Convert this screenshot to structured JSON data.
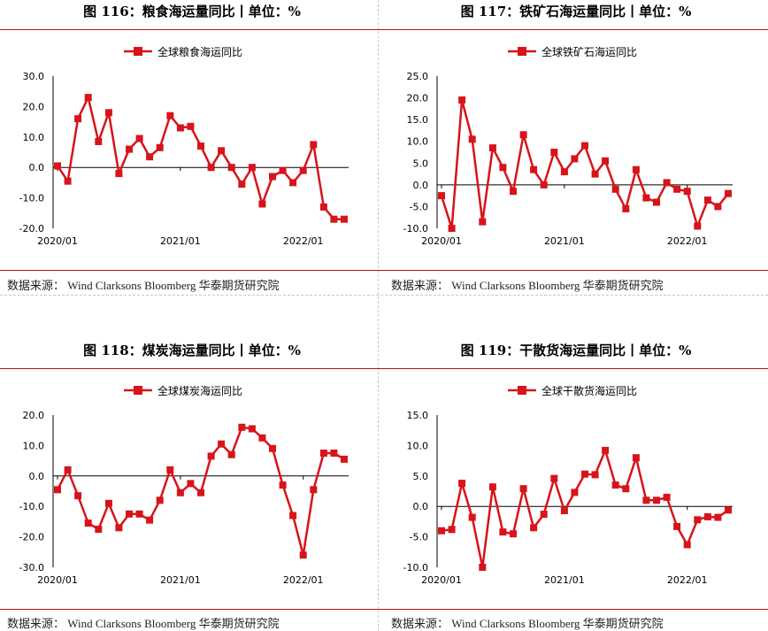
{
  "panels": [
    {
      "title": "图 116：粮食海运量同比丨单位：%",
      "source": "数据来源：  Wind Clarksons Bloomberg 华泰期货研究院",
      "chart_data": {
        "type": "line",
        "legend": "全球粮食海运同比",
        "legend_position": "top-center",
        "color": "#d7141a",
        "ylim": [
          -20,
          30
        ],
        "yticks": [
          30,
          20,
          10,
          0,
          -10,
          -20
        ],
        "ytick_labels": [
          "30.0",
          "20.0",
          "10.0",
          "0.0",
          "-10.0",
          "-20.0"
        ],
        "xtick_labels": [
          "2020/01",
          "2021/01",
          "2022/01"
        ],
        "x": [
          "2020/01",
          "2020/02",
          "2020/03",
          "2020/04",
          "2020/05",
          "2020/06",
          "2020/07",
          "2020/08",
          "2020/09",
          "2020/10",
          "2020/11",
          "2020/12",
          "2021/01",
          "2021/02",
          "2021/03",
          "2021/04",
          "2021/05",
          "2021/06",
          "2021/07",
          "2021/08",
          "2021/09",
          "2021/10",
          "2021/11",
          "2021/12",
          "2022/01",
          "2022/02",
          "2022/03",
          "2022/04",
          "2022/05"
        ],
        "values": [
          0.5,
          -4.5,
          16,
          23,
          8.5,
          18,
          -2,
          6,
          9.5,
          3.5,
          6.5,
          17,
          13,
          13.5,
          7,
          0,
          5.5,
          0,
          -5.5,
          0,
          -12,
          -3,
          -1,
          -5,
          -1,
          7.5,
          -13,
          -17,
          -17
        ]
      }
    },
    {
      "title": "图 117：铁矿石海运量同比丨单位：%",
      "source": "数据来源：  Wind Clarksons Bloomberg 华泰期货研究院",
      "chart_data": {
        "type": "line",
        "legend": "全球铁矿石海运同比",
        "legend_position": "top-center",
        "color": "#d7141a",
        "ylim": [
          -10,
          25
        ],
        "yticks": [
          25,
          20,
          15,
          10,
          5,
          0,
          -5,
          -10
        ],
        "ytick_labels": [
          "25.0",
          "20.0",
          "15.0",
          "10.0",
          "5.0",
          "0.0",
          "-5.0",
          "-10.0"
        ],
        "xtick_labels": [
          "2020/01",
          "2021/01",
          "2022/01"
        ],
        "x": [
          "2020/01",
          "2020/02",
          "2020/03",
          "2020/04",
          "2020/05",
          "2020/06",
          "2020/07",
          "2020/08",
          "2020/09",
          "2020/10",
          "2020/11",
          "2020/12",
          "2021/01",
          "2021/02",
          "2021/03",
          "2021/04",
          "2021/05",
          "2021/06",
          "2021/07",
          "2021/08",
          "2021/09",
          "2021/10",
          "2021/11",
          "2021/12",
          "2022/01",
          "2022/02",
          "2022/03",
          "2022/04",
          "2022/05"
        ],
        "values": [
          -2.5,
          -10,
          19.5,
          10.5,
          -8.5,
          8.5,
          4,
          -1.5,
          11.5,
          3.5,
          0,
          7.5,
          3,
          6,
          9,
          2.5,
          5.5,
          -1,
          -5.5,
          3.5,
          -3,
          -4,
          0.5,
          -1,
          -1.5,
          -9.5,
          -3.5,
          -5,
          -2
        ]
      }
    },
    {
      "title": "图 118：煤炭海运量同比丨单位：%",
      "source": "数据来源：  Wind Clarksons Bloomberg 华泰期货研究院",
      "chart_data": {
        "type": "line",
        "legend": "全球煤炭海运同比",
        "legend_position": "top-center",
        "color": "#d7141a",
        "ylim": [
          -30,
          20
        ],
        "yticks": [
          20,
          10,
          0,
          -10,
          -20,
          -30
        ],
        "ytick_labels": [
          "20.0",
          "10.0",
          "0.0",
          "-10.0",
          "-20.0",
          "-30.0"
        ],
        "xtick_labels": [
          "2020/01",
          "2021/01",
          "2022/01"
        ],
        "x": [
          "2020/01",
          "2020/02",
          "2020/03",
          "2020/04",
          "2020/05",
          "2020/06",
          "2020/07",
          "2020/08",
          "2020/09",
          "2020/10",
          "2020/11",
          "2020/12",
          "2021/01",
          "2021/02",
          "2021/03",
          "2021/04",
          "2021/05",
          "2021/06",
          "2021/07",
          "2021/08",
          "2021/09",
          "2021/10",
          "2021/11",
          "2021/12",
          "2022/01",
          "2022/02",
          "2022/03",
          "2022/04",
          "2022/05"
        ],
        "values": [
          -4.5,
          2,
          -6.5,
          -15.5,
          -17.5,
          -9,
          -17,
          -12.5,
          -12.5,
          -14.5,
          -8,
          2,
          -5.5,
          -2.5,
          -5.5,
          6.5,
          10.5,
          7,
          16,
          15.5,
          12.5,
          9,
          -3,
          -13,
          -26,
          -4.5,
          7.5,
          7.5,
          5.5
        ]
      }
    },
    {
      "title": "图 119：干散货海运量同比丨单位：%",
      "source": "数据来源：  Wind Clarksons Bloomberg 华泰期货研究院",
      "chart_data": {
        "type": "line",
        "legend": "全球干散货海运同比",
        "legend_position": "top-center",
        "color": "#d7141a",
        "ylim": [
          -10,
          15
        ],
        "yticks": [
          15,
          10,
          5,
          0,
          -5,
          -10
        ],
        "ytick_labels": [
          "15.0",
          "10.0",
          "5.0",
          "0.0",
          "-5.0",
          "-10.0"
        ],
        "xtick_labels": [
          "2020/01",
          "2021/01",
          "2022/01"
        ],
        "x": [
          "2020/01",
          "2020/02",
          "2020/03",
          "2020/04",
          "2020/05",
          "2020/06",
          "2020/07",
          "2020/08",
          "2020/09",
          "2020/10",
          "2020/11",
          "2020/12",
          "2021/01",
          "2021/02",
          "2021/03",
          "2021/04",
          "2021/05",
          "2021/06",
          "2021/07",
          "2021/08",
          "2021/09",
          "2021/10",
          "2021/11",
          "2021/12",
          "2022/01",
          "2022/02",
          "2022/03",
          "2022/04",
          "2022/05"
        ],
        "values": [
          -4,
          -3.8,
          3.8,
          -1.8,
          -10,
          3.2,
          -4.2,
          -4.5,
          2.9,
          -3.5,
          -1.3,
          4.6,
          -0.7,
          2.3,
          5.3,
          5.2,
          9.2,
          3.5,
          2.9,
          8,
          1,
          1,
          1.5,
          -3.3,
          -6.3,
          -2.2,
          -1.7,
          -1.8,
          -0.6
        ]
      }
    }
  ]
}
